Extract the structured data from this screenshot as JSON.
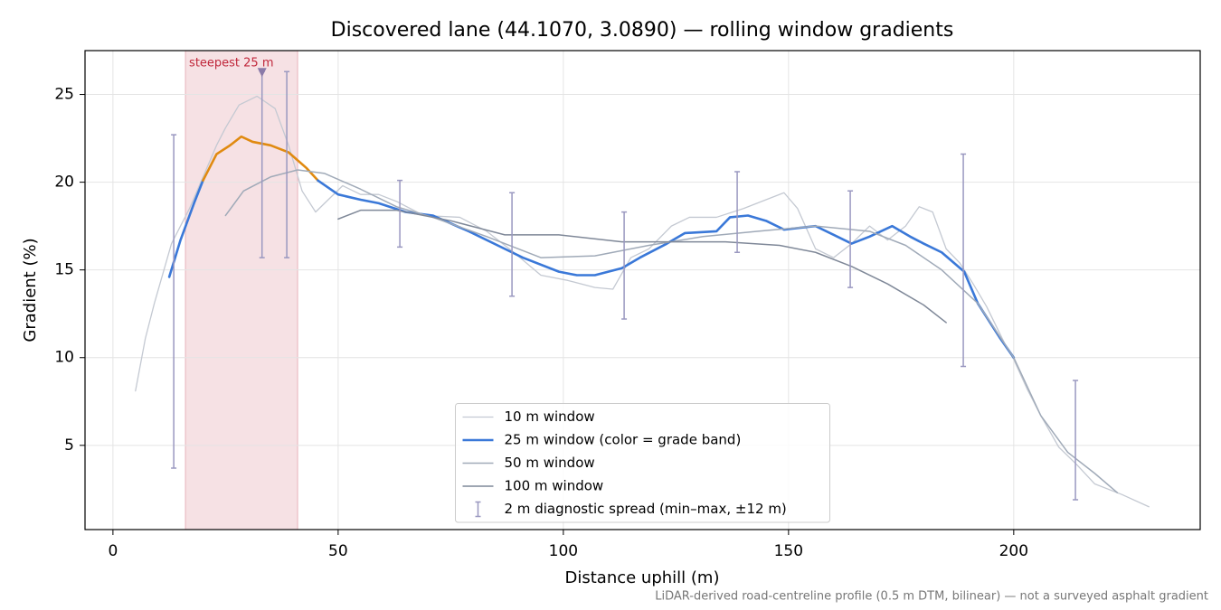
{
  "chart_data": {
    "type": "line",
    "title": "Discovered lane (44.1070, 3.0890) — rolling window gradients",
    "xlabel": "Distance uphill (m)",
    "ylabel": "Gradient (%)",
    "footnote": "LiDAR-derived road-centreline profile (0.5 m DTM, bilinear) — not a surveyed asphalt gradient",
    "xlim": [
      -6.2,
      241.4
    ],
    "ylim": [
      0.2,
      27.5
    ],
    "xticks": [
      0,
      50,
      100,
      150,
      200
    ],
    "yticks": [
      5,
      10,
      15,
      20,
      25
    ],
    "grid": true,
    "legend": "lower center",
    "highlight": {
      "label": "steepest 25 m",
      "x": [
        16.1,
        41.0
      ],
      "color": "#e8b4bc"
    },
    "marker": {
      "x": 33.1,
      "y": 26.3,
      "color": "#8a7aa8"
    },
    "series": [
      {
        "name": "10 m window",
        "color": "#c4c9d2",
        "width": 1.3,
        "x": [
          5,
          7.2,
          9.2,
          13,
          17,
          23,
          25,
          28,
          32,
          36,
          39,
          42,
          45,
          47,
          51,
          55,
          59,
          63,
          69,
          77,
          83,
          89,
          95,
          101,
          107,
          111,
          115,
          119,
          124,
          128,
          134,
          140,
          145,
          149,
          152,
          156,
          160,
          164,
          168,
          172,
          176,
          179,
          182,
          185,
          188,
          191,
          194,
          198,
          200,
          203,
          206,
          210,
          214,
          218,
          224,
          230
        ],
        "values": [
          8.1,
          11.1,
          13.1,
          16.5,
          18.5,
          22.1,
          23.1,
          24.4,
          24.9,
          24.2,
          22.1,
          19.5,
          18.3,
          18.8,
          19.8,
          19.3,
          19.3,
          18.9,
          18.1,
          18.0,
          17.2,
          16.0,
          14.7,
          14.4,
          14.0,
          13.9,
          15.7,
          16.2,
          17.5,
          18.0,
          18.0,
          18.5,
          19.0,
          19.4,
          18.5,
          16.2,
          15.7,
          16.5,
          17.5,
          16.7,
          17.5,
          18.6,
          18.3,
          16.2,
          15.4,
          14.2,
          12.9,
          10.8,
          9.9,
          8.2,
          6.7,
          4.9,
          3.9,
          2.8,
          2.2,
          1.5
        ]
      },
      {
        "name": "25 m window (color = grade band)",
        "color": "#3a78d8",
        "width": 2.6,
        "band_threshold": 20,
        "band_color": "#e08a10",
        "x": [
          12.5,
          15,
          18,
          20,
          23,
          26,
          28.5,
          31,
          35,
          39,
          43,
          45.5,
          50,
          55,
          59,
          65,
          71,
          79,
          87,
          91,
          99,
          103,
          107,
          113,
          117,
          123,
          127,
          134,
          137,
          141,
          145,
          149,
          156,
          160,
          164,
          168,
          173,
          177,
          180,
          184,
          189,
          192,
          197,
          200
        ],
        "values": [
          14.6,
          16.7,
          18.8,
          20.1,
          21.6,
          22.1,
          22.6,
          22.3,
          22.1,
          21.7,
          20.8,
          20.1,
          19.3,
          19.0,
          18.8,
          18.3,
          18.1,
          17.2,
          16.2,
          15.7,
          14.9,
          14.7,
          14.7,
          15.1,
          15.7,
          16.5,
          17.1,
          17.2,
          18.0,
          18.1,
          17.8,
          17.3,
          17.5,
          17.0,
          16.5,
          16.9,
          17.5,
          16.9,
          16.5,
          16.0,
          14.9,
          13.1,
          11.1,
          10.0
        ]
      },
      {
        "name": "50 m window",
        "color": "#a0aab8",
        "width": 1.5,
        "x": [
          25,
          29,
          35,
          41,
          47,
          55,
          63,
          71,
          83,
          95,
          107,
          119,
          131,
          143,
          156,
          168,
          176,
          184,
          192,
          200,
          206,
          212,
          218,
          223
        ],
        "values": [
          18.1,
          19.5,
          20.3,
          20.7,
          20.5,
          19.6,
          18.6,
          18.0,
          16.9,
          15.7,
          15.8,
          16.4,
          16.9,
          17.2,
          17.5,
          17.2,
          16.4,
          15.0,
          13.1,
          10.0,
          6.7,
          4.6,
          3.4,
          2.3
        ]
      },
      {
        "name": "100 m window",
        "color": "#7f8898",
        "width": 1.5,
        "x": [
          50,
          55,
          63,
          75,
          87,
          99,
          113,
          126,
          136,
          148,
          156,
          164,
          172,
          180,
          185
        ],
        "values": [
          17.9,
          18.4,
          18.4,
          17.8,
          17.0,
          17.0,
          16.6,
          16.6,
          16.6,
          16.4,
          16.0,
          15.2,
          14.2,
          13.0,
          12.0
        ]
      }
    ],
    "errorbars": {
      "name": "2 m diagnostic spread (min–max, ±12 m)",
      "color": "#9a98c0",
      "x": [
        13.5,
        33.1,
        38.6,
        63.7,
        88.6,
        113.5,
        138.6,
        163.7,
        188.8,
        213.7
      ],
      "low": [
        3.7,
        15.7,
        15.7,
        16.3,
        13.5,
        12.2,
        16.0,
        14.0,
        9.5,
        1.9
      ],
      "high": [
        22.7,
        26.3,
        26.3,
        20.1,
        19.4,
        18.3,
        20.6,
        19.5,
        21.6,
        8.7
      ]
    }
  }
}
